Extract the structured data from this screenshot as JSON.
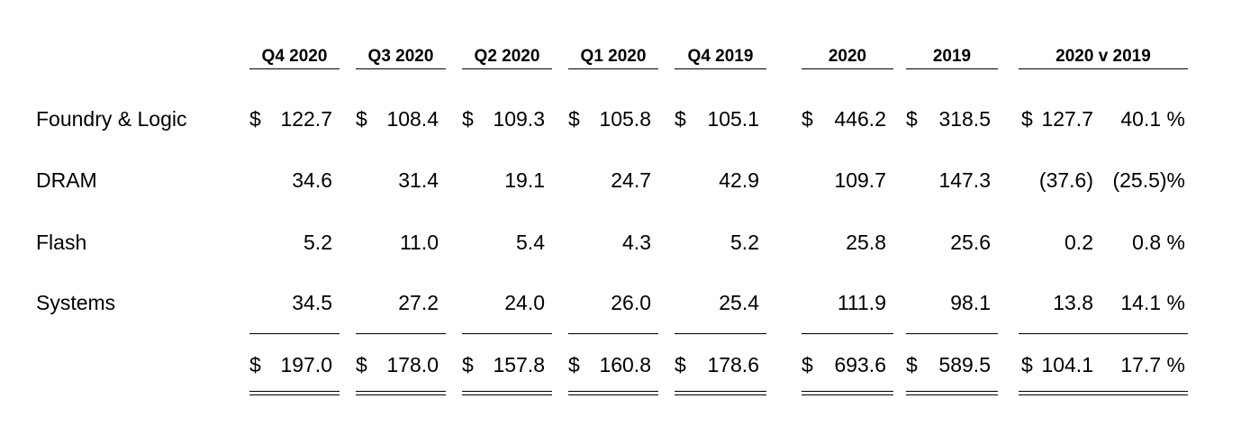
{
  "columns": [
    "Q4 2020",
    "Q3 2020",
    "Q2 2020",
    "Q1 2020",
    "Q4 2019",
    "2020",
    "2019",
    "2020 v 2019"
  ],
  "currency_symbol": "$",
  "rows": [
    {
      "label": "Foundry & Logic",
      "values": [
        "122.7",
        "108.4",
        "109.3",
        "105.8",
        "105.1",
        "446.2",
        "318.5"
      ],
      "change": "127.7",
      "pct": "40.1 %"
    },
    {
      "label": "DRAM",
      "values": [
        "34.6",
        "31.4",
        "19.1",
        "24.7",
        "42.9",
        "109.7",
        "147.3"
      ],
      "change": "(37.6)",
      "pct": "(25.5)%"
    },
    {
      "label": "Flash",
      "values": [
        "5.2",
        "11.0",
        "5.4",
        "4.3",
        "5.2",
        "25.8",
        "25.6"
      ],
      "change": "0.2",
      "pct": "0.8 %"
    },
    {
      "label": "Systems",
      "values": [
        "34.5",
        "27.2",
        "24.0",
        "26.0",
        "25.4",
        "111.9",
        "98.1"
      ],
      "change": "13.8",
      "pct": "14.1 %"
    }
  ],
  "total": {
    "values": [
      "197.0",
      "178.0",
      "157.8",
      "160.8",
      "178.6",
      "693.6",
      "589.5"
    ],
    "change": "104.1",
    "pct": "17.7 %"
  }
}
